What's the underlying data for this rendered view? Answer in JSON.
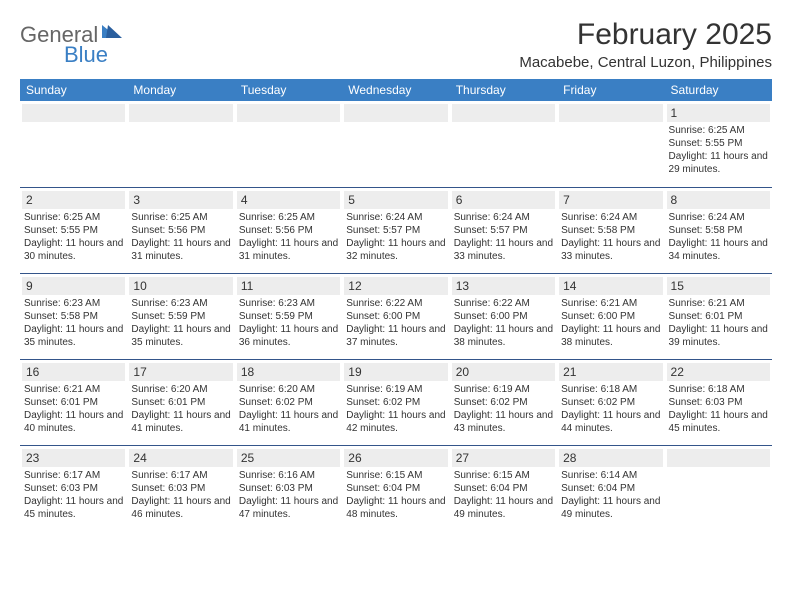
{
  "logo": {
    "general": "General",
    "blue": "Blue"
  },
  "title": "February 2025",
  "location": "Macabebe, Central Luzon, Philippines",
  "colors": {
    "header_bg": "#3a7fc4",
    "header_fg": "#ffffff",
    "daynum_bg": "#ededed",
    "rule": "#34558a",
    "text": "#333333"
  },
  "weekdays": [
    "Sunday",
    "Monday",
    "Tuesday",
    "Wednesday",
    "Thursday",
    "Friday",
    "Saturday"
  ],
  "weeks": [
    [
      {
        "n": "",
        "sr": "",
        "ss": "",
        "dl": ""
      },
      {
        "n": "",
        "sr": "",
        "ss": "",
        "dl": ""
      },
      {
        "n": "",
        "sr": "",
        "ss": "",
        "dl": ""
      },
      {
        "n": "",
        "sr": "",
        "ss": "",
        "dl": ""
      },
      {
        "n": "",
        "sr": "",
        "ss": "",
        "dl": ""
      },
      {
        "n": "",
        "sr": "",
        "ss": "",
        "dl": ""
      },
      {
        "n": "1",
        "sr": "Sunrise: 6:25 AM",
        "ss": "Sunset: 5:55 PM",
        "dl": "Daylight: 11 hours and 29 minutes."
      }
    ],
    [
      {
        "n": "2",
        "sr": "Sunrise: 6:25 AM",
        "ss": "Sunset: 5:55 PM",
        "dl": "Daylight: 11 hours and 30 minutes."
      },
      {
        "n": "3",
        "sr": "Sunrise: 6:25 AM",
        "ss": "Sunset: 5:56 PM",
        "dl": "Daylight: 11 hours and 31 minutes."
      },
      {
        "n": "4",
        "sr": "Sunrise: 6:25 AM",
        "ss": "Sunset: 5:56 PM",
        "dl": "Daylight: 11 hours and 31 minutes."
      },
      {
        "n": "5",
        "sr": "Sunrise: 6:24 AM",
        "ss": "Sunset: 5:57 PM",
        "dl": "Daylight: 11 hours and 32 minutes."
      },
      {
        "n": "6",
        "sr": "Sunrise: 6:24 AM",
        "ss": "Sunset: 5:57 PM",
        "dl": "Daylight: 11 hours and 33 minutes."
      },
      {
        "n": "7",
        "sr": "Sunrise: 6:24 AM",
        "ss": "Sunset: 5:58 PM",
        "dl": "Daylight: 11 hours and 33 minutes."
      },
      {
        "n": "8",
        "sr": "Sunrise: 6:24 AM",
        "ss": "Sunset: 5:58 PM",
        "dl": "Daylight: 11 hours and 34 minutes."
      }
    ],
    [
      {
        "n": "9",
        "sr": "Sunrise: 6:23 AM",
        "ss": "Sunset: 5:58 PM",
        "dl": "Daylight: 11 hours and 35 minutes."
      },
      {
        "n": "10",
        "sr": "Sunrise: 6:23 AM",
        "ss": "Sunset: 5:59 PM",
        "dl": "Daylight: 11 hours and 35 minutes."
      },
      {
        "n": "11",
        "sr": "Sunrise: 6:23 AM",
        "ss": "Sunset: 5:59 PM",
        "dl": "Daylight: 11 hours and 36 minutes."
      },
      {
        "n": "12",
        "sr": "Sunrise: 6:22 AM",
        "ss": "Sunset: 6:00 PM",
        "dl": "Daylight: 11 hours and 37 minutes."
      },
      {
        "n": "13",
        "sr": "Sunrise: 6:22 AM",
        "ss": "Sunset: 6:00 PM",
        "dl": "Daylight: 11 hours and 38 minutes."
      },
      {
        "n": "14",
        "sr": "Sunrise: 6:21 AM",
        "ss": "Sunset: 6:00 PM",
        "dl": "Daylight: 11 hours and 38 minutes."
      },
      {
        "n": "15",
        "sr": "Sunrise: 6:21 AM",
        "ss": "Sunset: 6:01 PM",
        "dl": "Daylight: 11 hours and 39 minutes."
      }
    ],
    [
      {
        "n": "16",
        "sr": "Sunrise: 6:21 AM",
        "ss": "Sunset: 6:01 PM",
        "dl": "Daylight: 11 hours and 40 minutes."
      },
      {
        "n": "17",
        "sr": "Sunrise: 6:20 AM",
        "ss": "Sunset: 6:01 PM",
        "dl": "Daylight: 11 hours and 41 minutes."
      },
      {
        "n": "18",
        "sr": "Sunrise: 6:20 AM",
        "ss": "Sunset: 6:02 PM",
        "dl": "Daylight: 11 hours and 41 minutes."
      },
      {
        "n": "19",
        "sr": "Sunrise: 6:19 AM",
        "ss": "Sunset: 6:02 PM",
        "dl": "Daylight: 11 hours and 42 minutes."
      },
      {
        "n": "20",
        "sr": "Sunrise: 6:19 AM",
        "ss": "Sunset: 6:02 PM",
        "dl": "Daylight: 11 hours and 43 minutes."
      },
      {
        "n": "21",
        "sr": "Sunrise: 6:18 AM",
        "ss": "Sunset: 6:02 PM",
        "dl": "Daylight: 11 hours and 44 minutes."
      },
      {
        "n": "22",
        "sr": "Sunrise: 6:18 AM",
        "ss": "Sunset: 6:03 PM",
        "dl": "Daylight: 11 hours and 45 minutes."
      }
    ],
    [
      {
        "n": "23",
        "sr": "Sunrise: 6:17 AM",
        "ss": "Sunset: 6:03 PM",
        "dl": "Daylight: 11 hours and 45 minutes."
      },
      {
        "n": "24",
        "sr": "Sunrise: 6:17 AM",
        "ss": "Sunset: 6:03 PM",
        "dl": "Daylight: 11 hours and 46 minutes."
      },
      {
        "n": "25",
        "sr": "Sunrise: 6:16 AM",
        "ss": "Sunset: 6:03 PM",
        "dl": "Daylight: 11 hours and 47 minutes."
      },
      {
        "n": "26",
        "sr": "Sunrise: 6:15 AM",
        "ss": "Sunset: 6:04 PM",
        "dl": "Daylight: 11 hours and 48 minutes."
      },
      {
        "n": "27",
        "sr": "Sunrise: 6:15 AM",
        "ss": "Sunset: 6:04 PM",
        "dl": "Daylight: 11 hours and 49 minutes."
      },
      {
        "n": "28",
        "sr": "Sunrise: 6:14 AM",
        "ss": "Sunset: 6:04 PM",
        "dl": "Daylight: 11 hours and 49 minutes."
      },
      {
        "n": "",
        "sr": "",
        "ss": "",
        "dl": ""
      }
    ]
  ]
}
